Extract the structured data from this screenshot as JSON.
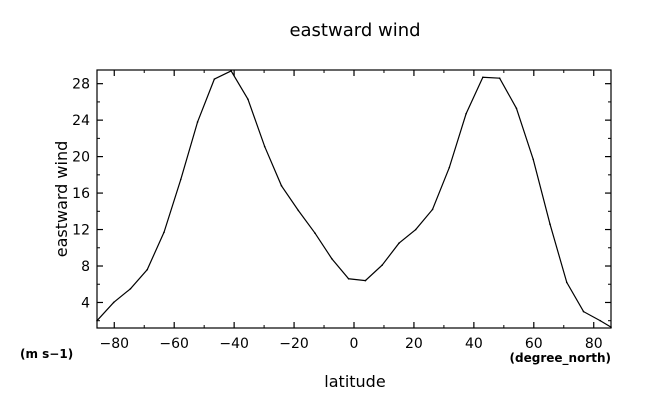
{
  "chart_data": {
    "type": "line",
    "title": "eastward wind",
    "xlabel": "latitude",
    "ylabel": "eastward wind",
    "y_units": "(m s−1)",
    "x_units": "(degree_north)",
    "xlim": [
      -85.76,
      85.76
    ],
    "ylim": [
      1.2,
      29.5
    ],
    "x_ticks": [
      -80,
      -60,
      -40,
      -20,
      0,
      20,
      40,
      60,
      80
    ],
    "x_tick_labels": [
      "−80",
      "−60",
      "−40",
      "−20",
      "0",
      "20",
      "40",
      "60",
      "80"
    ],
    "y_ticks": [
      4,
      8,
      12,
      16,
      20,
      24,
      28
    ],
    "y_tick_labels": [
      "4",
      "8",
      "12",
      "16",
      "20",
      "24",
      "28"
    ],
    "grid": false,
    "legend": "none",
    "series": [
      {
        "x": [
          -85.76,
          -80.2,
          -74.6,
          -69.0,
          -63.4,
          -57.8,
          -52.2,
          -46.6,
          -41.0,
          -35.4,
          -29.8,
          -24.2,
          -18.6,
          -13.0,
          -7.4,
          -1.8,
          3.8,
          9.4,
          15.0,
          20.6,
          26.2,
          31.8,
          37.4,
          43.0,
          48.6,
          54.2,
          59.8,
          65.4,
          71.0,
          76.6,
          82.2,
          85.76
        ],
        "y": [
          2.0,
          4.0,
          5.5,
          7.6,
          11.7,
          17.5,
          23.8,
          28.5,
          29.4,
          26.3,
          21.1,
          16.8,
          14.1,
          11.6,
          8.8,
          6.6,
          6.4,
          8.1,
          10.5,
          12.0,
          14.2,
          18.8,
          24.7,
          28.7,
          28.6,
          25.3,
          19.7,
          12.6,
          6.2,
          3.0,
          2.0,
          1.3
        ]
      }
    ]
  }
}
